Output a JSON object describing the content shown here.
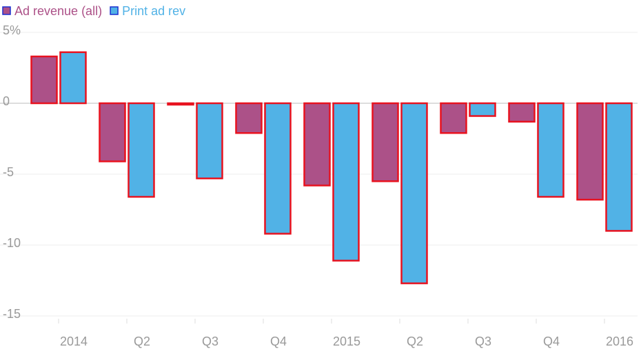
{
  "chart_data": {
    "type": "bar",
    "categories": [
      "2014",
      "Q2",
      "Q3",
      "Q4",
      "2015",
      "Q2",
      "Q3",
      "Q4",
      "2016"
    ],
    "series": [
      {
        "name": "Ad revenue (all)",
        "color": "#ac5188",
        "values": [
          3.3,
          -4.1,
          -0.1,
          -2.1,
          -5.8,
          -5.5,
          -2.1,
          -1.3,
          -6.8
        ]
      },
      {
        "name": "Print ad rev",
        "color": "#51b2e6",
        "values": [
          3.6,
          -6.6,
          -5.3,
          -9.2,
          -11.1,
          -12.7,
          -0.9,
          -6.6,
          -9.0
        ]
      }
    ],
    "ylim": [
      -16,
      5
    ],
    "yticks": [
      {
        "value": 5,
        "label": "5%"
      },
      0,
      -5,
      -10,
      -15
    ],
    "grid": true
  }
}
